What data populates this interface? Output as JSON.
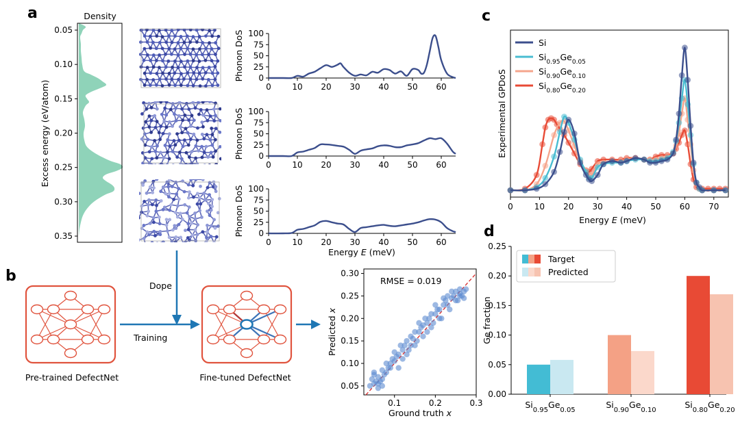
{
  "panel_labels": {
    "a": "a",
    "b": "b",
    "c": "c",
    "d": "d"
  },
  "panel_a": {
    "density": {
      "title": "Density",
      "ylabel": "Excess energy (eV/atom)",
      "ticks": [
        "0.05",
        "0.10",
        "0.15",
        "0.20",
        "0.25",
        "0.30",
        "0.35"
      ],
      "fill_color": "#8fd3b9"
    },
    "phonon": {
      "ylabel": "Phonon DoS",
      "xlabel_main": "Energy ",
      "xlabel_var": "E",
      "xlabel_unit": " (meV)",
      "xticks": [
        "0",
        "10",
        "20",
        "30",
        "40",
        "50",
        "60"
      ],
      "yticks": [
        "0",
        "25",
        "50",
        "75",
        "100"
      ],
      "line_color": "#3b4e8c"
    }
  },
  "panel_b": {
    "dope_label": "Dope",
    "training_label": "Training",
    "pretrained_caption": "Pre-trained DefectNet",
    "finetuned_caption": "Fine-tuned DefectNet",
    "net_color": "#e0533d",
    "arrow_color": "#1f77b4",
    "scatter": {
      "rmse_label": "RMSE = 0.019",
      "xlabel": "Ground truth ",
      "ylabel": "Predicted ",
      "var": "x",
      "xticks": [
        "0.1",
        "0.2",
        "0.3"
      ],
      "yticks": [
        "0.05",
        "0.10",
        "0.15",
        "0.20",
        "0.25",
        "0.30"
      ],
      "point_color": "#5b8bd0"
    }
  },
  "panel_c": {
    "ylabel": "Experimental GPDoS",
    "xlabel_main": "Energy ",
    "xlabel_var": "E",
    "xlabel_unit": " (meV)",
    "xticks": [
      "0",
      "10",
      "20",
      "30",
      "40",
      "50",
      "60",
      "70"
    ],
    "legend": [
      {
        "base": "Si",
        "parts": [],
        "color": "#3b4e8c"
      },
      {
        "base": "Si",
        "parts": [
          [
            "0.95"
          ],
          [
            "Ge"
          ],
          [
            "0.05"
          ]
        ],
        "color": "#48bcd1"
      },
      {
        "base": "Si",
        "parts": [
          [
            "0.90"
          ],
          [
            "Ge"
          ],
          [
            "0.10"
          ]
        ],
        "color": "#f5a58c"
      },
      {
        "base": "Si",
        "parts": [
          [
            "0.80"
          ],
          [
            "Ge"
          ],
          [
            "0.20"
          ]
        ],
        "color": "#e84a35"
      }
    ]
  },
  "panel_d": {
    "ylabel": "Ge fraction",
    "yticks": [
      "0.00",
      "0.05",
      "0.10",
      "0.15",
      "0.20",
      "0.25"
    ],
    "legend_target": "Target",
    "legend_predicted": "Predicted",
    "categories": [
      {
        "s1": "Si",
        "n1": "0.95",
        "s2": "Ge",
        "n2": "0.05"
      },
      {
        "s1": "Si",
        "n1": "0.90",
        "s2": "Ge",
        "n2": "0.10"
      },
      {
        "s1": "Si",
        "n1": "0.80",
        "s2": "Ge",
        "n2": "0.20"
      }
    ]
  },
  "chart_data": [
    {
      "type": "bar",
      "categories": [
        "Si0.95Ge0.05",
        "Si0.90Ge0.10",
        "Si0.80Ge0.20"
      ],
      "series": [
        {
          "name": "Target",
          "values": [
            0.05,
            0.1,
            0.2
          ],
          "colors": [
            "#43bcd4",
            "#f4a185",
            "#e84a35"
          ]
        },
        {
          "name": "Predicted",
          "values": [
            0.058,
            0.073,
            0.169
          ],
          "colors": [
            "#c9e8f1",
            "#fbd8cb",
            "#f7c3b0"
          ]
        }
      ],
      "ylabel": "Ge fraction",
      "ylim": [
        0,
        0.25
      ]
    },
    {
      "type": "line",
      "ylabel": "Experimental GPDoS",
      "xlabel": "Energy E (meV)",
      "xlim": [
        0,
        75
      ],
      "series": [
        {
          "name": "Si",
          "x": [
            0,
            5,
            9,
            12,
            15,
            17,
            18.5,
            20,
            22,
            24,
            26,
            27,
            28,
            30,
            32,
            35,
            38,
            40,
            43,
            46,
            48,
            50,
            52,
            54,
            56,
            57,
            58,
            59,
            60,
            61,
            62,
            63,
            64,
            65,
            66,
            70,
            74
          ],
          "y": [
            0,
            0,
            0.01,
            0.04,
            0.12,
            0.25,
            0.38,
            0.46,
            0.37,
            0.18,
            0.1,
            0.07,
            0.06,
            0.1,
            0.17,
            0.19,
            0.18,
            0.19,
            0.21,
            0.2,
            0.18,
            0.18,
            0.19,
            0.2,
            0.24,
            0.33,
            0.5,
            0.75,
            0.93,
            0.72,
            0.42,
            0.18,
            0.05,
            0.02,
            0,
            0,
            0
          ]
        },
        {
          "name": "Si0.95Ge0.05",
          "x": [
            0,
            5,
            9,
            12,
            15,
            17,
            18.5,
            20,
            22,
            24,
            26,
            27,
            28,
            30,
            32,
            35,
            38,
            40,
            43,
            46,
            48,
            50,
            52,
            54,
            56,
            57,
            58,
            59,
            60,
            61,
            62,
            63,
            64,
            65,
            66,
            70,
            74
          ],
          "y": [
            0,
            0,
            0.02,
            0.08,
            0.22,
            0.38,
            0.48,
            0.44,
            0.33,
            0.2,
            0.12,
            0.08,
            0.08,
            0.15,
            0.17,
            0.18,
            0.18,
            0.19,
            0.2,
            0.2,
            0.19,
            0.19,
            0.2,
            0.21,
            0.25,
            0.32,
            0.44,
            0.6,
            0.72,
            0.56,
            0.36,
            0.17,
            0.05,
            0.01,
            0,
            0,
            0
          ]
        },
        {
          "name": "Si0.90Ge0.10",
          "x": [
            0,
            5,
            9,
            12,
            15,
            17,
            18.5,
            20,
            22,
            24,
            26,
            27,
            28,
            30,
            32,
            35,
            38,
            40,
            43,
            46,
            48,
            50,
            52,
            54,
            56,
            57,
            58,
            59,
            60,
            61,
            62,
            63,
            64,
            65,
            66,
            70,
            74
          ],
          "y": [
            0,
            0,
            0.04,
            0.16,
            0.36,
            0.44,
            0.45,
            0.39,
            0.29,
            0.19,
            0.13,
            0.09,
            0.1,
            0.17,
            0.18,
            0.19,
            0.19,
            0.2,
            0.21,
            0.2,
            0.2,
            0.2,
            0.21,
            0.22,
            0.24,
            0.29,
            0.38,
            0.5,
            0.6,
            0.46,
            0.3,
            0.13,
            0.04,
            0.01,
            0,
            0,
            0
          ]
        },
        {
          "name": "Si0.80Ge0.20",
          "x": [
            0,
            5,
            9,
            11,
            12,
            13,
            14,
            15,
            16,
            17,
            18.5,
            20,
            22,
            24,
            26,
            27,
            28,
            30,
            32,
            35,
            38,
            40,
            43,
            46,
            48,
            50,
            52,
            54,
            56,
            57,
            58,
            59,
            60,
            61,
            62,
            63,
            64,
            65,
            66,
            68,
            70,
            72,
            74
          ],
          "y": [
            0,
            0.01,
            0.1,
            0.3,
            0.41,
            0.46,
            0.47,
            0.46,
            0.43,
            0.4,
            0.36,
            0.31,
            0.24,
            0.17,
            0.13,
            0.12,
            0.14,
            0.19,
            0.2,
            0.2,
            0.2,
            0.21,
            0.21,
            0.2,
            0.2,
            0.22,
            0.23,
            0.23,
            0.24,
            0.27,
            0.31,
            0.36,
            0.39,
            0.3,
            0.17,
            0.07,
            0.02,
            0.01,
            0.01,
            0.01,
            0.01,
            0.01,
            0.01
          ]
        }
      ]
    },
    {
      "type": "scatter",
      "xlabel": "Ground truth x",
      "ylabel": "Predicted x",
      "xlim": [
        0.025,
        0.3
      ],
      "ylim": [
        0.03,
        0.31
      ],
      "annotation": "RMSE = 0.019",
      "x": [
        0.04,
        0.045,
        0.05,
        0.05,
        0.055,
        0.06,
        0.06,
        0.065,
        0.07,
        0.07,
        0.075,
        0.08,
        0.08,
        0.085,
        0.09,
        0.095,
        0.1,
        0.1,
        0.105,
        0.11,
        0.115,
        0.12,
        0.12,
        0.125,
        0.13,
        0.135,
        0.14,
        0.14,
        0.145,
        0.15,
        0.155,
        0.16,
        0.16,
        0.165,
        0.17,
        0.175,
        0.18,
        0.18,
        0.185,
        0.19,
        0.195,
        0.2,
        0.2,
        0.205,
        0.21,
        0.215,
        0.22,
        0.22,
        0.225,
        0.23,
        0.235,
        0.24,
        0.24,
        0.245,
        0.25,
        0.255,
        0.26,
        0.26,
        0.265,
        0.27,
        0.27,
        0.275,
        0.05,
        0.06,
        0.09,
        0.11,
        0.13,
        0.17,
        0.19,
        0.21,
        0.23,
        0.25,
        0.26,
        0.07,
        0.15
      ],
      "y": [
        0.05,
        0.065,
        0.075,
        0.055,
        0.06,
        0.07,
        0.045,
        0.06,
        0.085,
        0.065,
        0.075,
        0.1,
        0.08,
        0.09,
        0.09,
        0.11,
        0.105,
        0.125,
        0.115,
        0.12,
        0.14,
        0.13,
        0.11,
        0.14,
        0.15,
        0.13,
        0.16,
        0.14,
        0.155,
        0.17,
        0.15,
        0.17,
        0.19,
        0.18,
        0.185,
        0.2,
        0.19,
        0.17,
        0.2,
        0.21,
        0.19,
        0.21,
        0.23,
        0.22,
        0.22,
        0.2,
        0.23,
        0.245,
        0.24,
        0.25,
        0.22,
        0.245,
        0.26,
        0.25,
        0.26,
        0.24,
        0.255,
        0.265,
        0.25,
        0.26,
        0.245,
        0.265,
        0.08,
        0.055,
        0.1,
        0.09,
        0.12,
        0.16,
        0.18,
        0.2,
        0.23,
        0.24,
        0.25,
        0.05,
        0.14
      ]
    },
    {
      "type": "line",
      "title": "Phonon DoS (top)",
      "xlim": [
        0,
        65
      ],
      "ylim": [
        0,
        100
      ],
      "x": [
        0,
        5,
        8,
        10,
        12,
        14,
        16,
        18,
        20,
        22,
        24,
        25,
        26,
        28,
        30,
        32,
        34,
        36,
        38,
        40,
        42,
        44,
        46,
        48,
        50,
        52,
        53,
        54,
        55,
        56,
        57,
        58,
        59,
        60,
        62,
        64,
        65
      ],
      "y": [
        0,
        0,
        0,
        5,
        3,
        10,
        14,
        22,
        29,
        25,
        30,
        33,
        25,
        12,
        5,
        8,
        6,
        14,
        12,
        20,
        18,
        10,
        15,
        5,
        20,
        18,
        10,
        12,
        30,
        60,
        90,
        95,
        70,
        40,
        10,
        2,
        0
      ]
    },
    {
      "type": "line",
      "title": "Phonon DoS (middle)",
      "xlim": [
        0,
        65
      ],
      "ylim": [
        0,
        100
      ],
      "x": [
        0,
        5,
        8,
        10,
        12,
        14,
        16,
        18,
        20,
        22,
        24,
        26,
        28,
        30,
        32,
        34,
        36,
        38,
        40,
        42,
        44,
        46,
        48,
        50,
        52,
        54,
        56,
        58,
        60,
        62,
        64,
        65
      ],
      "y": [
        0,
        0,
        0,
        8,
        10,
        14,
        18,
        26,
        26,
        25,
        23,
        21,
        14,
        5,
        12,
        15,
        17,
        22,
        24,
        23,
        20,
        20,
        24,
        26,
        29,
        35,
        40,
        38,
        40,
        28,
        10,
        5
      ]
    },
    {
      "type": "line",
      "title": "Phonon DoS (bottom)",
      "xlim": [
        0,
        65
      ],
      "ylim": [
        0,
        100
      ],
      "x": [
        0,
        5,
        8,
        10,
        12,
        14,
        16,
        18,
        20,
        22,
        24,
        26,
        28,
        30,
        32,
        34,
        36,
        38,
        40,
        42,
        44,
        46,
        48,
        50,
        52,
        54,
        56,
        58,
        60,
        62,
        64,
        65
      ],
      "y": [
        0,
        0,
        1,
        8,
        10,
        14,
        18,
        26,
        28,
        25,
        22,
        20,
        10,
        3,
        12,
        14,
        16,
        18,
        19,
        17,
        16,
        18,
        20,
        22,
        25,
        29,
        32,
        31,
        25,
        12,
        5,
        3
      ]
    }
  ]
}
